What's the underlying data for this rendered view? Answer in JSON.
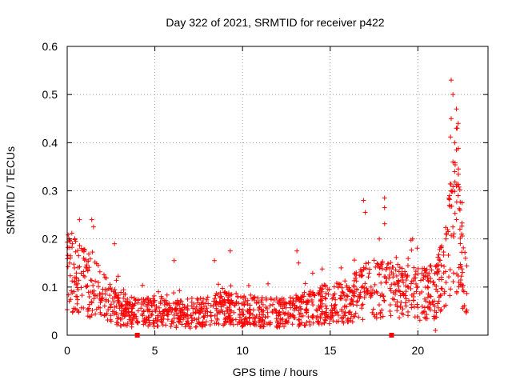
{
  "chart_data": {
    "type": "scatter",
    "title": "Day 322 of 2021, SRMTID for receiver p422",
    "xlabel": "GPS time / hours",
    "ylabel": "SRMTID / TECUs",
    "xlim": [
      0,
      24
    ],
    "ylim": [
      0,
      0.6
    ],
    "xticks": [
      0,
      5,
      10,
      15,
      20
    ],
    "xtick_labels": [
      "0",
      "5",
      "10",
      "15",
      "20"
    ],
    "yticks": [
      0,
      0.1,
      0.2,
      0.3,
      0.4,
      0.5,
      0.6
    ],
    "ytick_labels": [
      "0",
      "0.1",
      "0.2",
      "0.3",
      "0.4",
      "0.5",
      "0.6"
    ],
    "grid": true,
    "color": "#ff0000",
    "marker": "plus",
    "axis_markers": [
      {
        "x": 4.0,
        "y": 0,
        "shape": "square"
      },
      {
        "x": 18.5,
        "y": 0,
        "shape": "square"
      }
    ],
    "envelope": [
      {
        "x": 0.0,
        "y": 0.14
      },
      {
        "x": 0.5,
        "y": 0.12
      },
      {
        "x": 1.0,
        "y": 0.11
      },
      {
        "x": 1.5,
        "y": 0.1
      },
      {
        "x": 2.0,
        "y": 0.08
      },
      {
        "x": 2.5,
        "y": 0.065
      },
      {
        "x": 3.0,
        "y": 0.055
      },
      {
        "x": 4.0,
        "y": 0.045
      },
      {
        "x": 5.0,
        "y": 0.05
      },
      {
        "x": 6.0,
        "y": 0.045
      },
      {
        "x": 7.0,
        "y": 0.042
      },
      {
        "x": 8.0,
        "y": 0.05
      },
      {
        "x": 9.0,
        "y": 0.055
      },
      {
        "x": 10.0,
        "y": 0.05
      },
      {
        "x": 11.0,
        "y": 0.048
      },
      {
        "x": 12.0,
        "y": 0.045
      },
      {
        "x": 13.0,
        "y": 0.05
      },
      {
        "x": 14.0,
        "y": 0.06
      },
      {
        "x": 15.0,
        "y": 0.065
      },
      {
        "x": 16.0,
        "y": 0.07
      },
      {
        "x": 17.0,
        "y": 0.09
      },
      {
        "x": 18.0,
        "y": 0.1
      },
      {
        "x": 19.0,
        "y": 0.09
      },
      {
        "x": 20.0,
        "y": 0.085
      },
      {
        "x": 21.0,
        "y": 0.09
      },
      {
        "x": 21.5,
        "y": 0.13
      },
      {
        "x": 22.0,
        "y": 0.22
      },
      {
        "x": 22.3,
        "y": 0.25
      },
      {
        "x": 22.6,
        "y": 0.12
      },
      {
        "x": 22.8,
        "y": 0.09
      }
    ],
    "outliers": [
      {
        "x": 0.1,
        "y": 0.2
      },
      {
        "x": 0.3,
        "y": 0.19
      },
      {
        "x": 0.7,
        "y": 0.24
      },
      {
        "x": 1.4,
        "y": 0.24
      },
      {
        "x": 1.5,
        "y": 0.225
      },
      {
        "x": 2.7,
        "y": 0.19
      },
      {
        "x": 6.1,
        "y": 0.155
      },
      {
        "x": 8.4,
        "y": 0.155
      },
      {
        "x": 9.3,
        "y": 0.175
      },
      {
        "x": 13.1,
        "y": 0.175
      },
      {
        "x": 13.2,
        "y": 0.15
      },
      {
        "x": 16.9,
        "y": 0.28
      },
      {
        "x": 17.0,
        "y": 0.255
      },
      {
        "x": 18.1,
        "y": 0.285
      },
      {
        "x": 18.1,
        "y": 0.265
      },
      {
        "x": 17.8,
        "y": 0.2
      },
      {
        "x": 19.7,
        "y": 0.2
      },
      {
        "x": 21.6,
        "y": 0.2
      },
      {
        "x": 21.9,
        "y": 0.53
      },
      {
        "x": 22.0,
        "y": 0.5
      },
      {
        "x": 21.9,
        "y": 0.45
      },
      {
        "x": 22.2,
        "y": 0.47
      },
      {
        "x": 22.3,
        "y": 0.44
      },
      {
        "x": 22.2,
        "y": 0.43
      },
      {
        "x": 22.1,
        "y": 0.4
      },
      {
        "x": 22.2,
        "y": 0.385
      },
      {
        "x": 22.0,
        "y": 0.36
      },
      {
        "x": 22.1,
        "y": 0.34
      },
      {
        "x": 22.2,
        "y": 0.31
      },
      {
        "x": 21.9,
        "y": 0.3
      },
      {
        "x": 22.3,
        "y": 0.29
      },
      {
        "x": 21.8,
        "y": 0.27
      },
      {
        "x": 22.4,
        "y": 0.26
      },
      {
        "x": 22.4,
        "y": 0.22
      },
      {
        "x": 22.5,
        "y": 0.21
      },
      {
        "x": 21.0,
        "y": 0.01
      }
    ],
    "n_points": 1500,
    "seed": 322
  }
}
